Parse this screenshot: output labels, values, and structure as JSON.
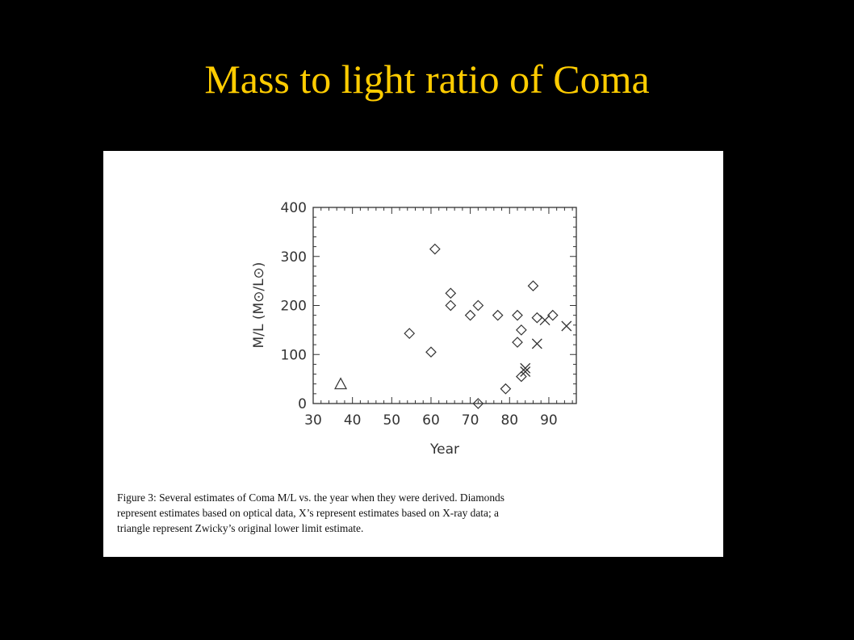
{
  "slide": {
    "title": "Mass to light ratio of Coma"
  },
  "figure": {
    "caption_lines": [
      "Figure 3:  Several estimates of Coma M/L vs.  the year when they were derived.  Diamonds",
      "represent estimates based on optical data, X’s represent estimates based on X-ray data; a",
      "triangle represent Zwicky’s original lower limit estimate."
    ]
  },
  "colors": {
    "background": "#000000",
    "title": "#ffcc00",
    "panel": "#ffffff",
    "ink": "#333333"
  },
  "chart_data": {
    "type": "scatter",
    "xlabel": "Year",
    "ylabel": "M/L (M⊙/L⊙)",
    "xlim": [
      30,
      97
    ],
    "ylim": [
      0,
      400
    ],
    "xticks": [
      30,
      40,
      50,
      60,
      70,
      80,
      90
    ],
    "yticks": [
      0,
      100,
      200,
      300,
      400
    ],
    "grid": false,
    "series": [
      {
        "marker": "diamond",
        "points": [
          {
            "x": 54.5,
            "y": 143
          },
          {
            "x": 60,
            "y": 105
          },
          {
            "x": 61,
            "y": 315
          },
          {
            "x": 65,
            "y": 200
          },
          {
            "x": 65,
            "y": 225
          },
          {
            "x": 70,
            "y": 180
          },
          {
            "x": 72,
            "y": 200
          },
          {
            "x": 72,
            "y": 0
          },
          {
            "x": 77,
            "y": 180
          },
          {
            "x": 79,
            "y": 30
          },
          {
            "x": 82,
            "y": 180
          },
          {
            "x": 82,
            "y": 125
          },
          {
            "x": 83,
            "y": 150
          },
          {
            "x": 83,
            "y": 55
          },
          {
            "x": 86,
            "y": 240
          },
          {
            "x": 87,
            "y": 175
          },
          {
            "x": 91,
            "y": 180
          }
        ]
      },
      {
        "marker": "x",
        "points": [
          {
            "x": 84,
            "y": 65
          },
          {
            "x": 84,
            "y": 72
          },
          {
            "x": 87,
            "y": 122
          },
          {
            "x": 89,
            "y": 170
          },
          {
            "x": 94.5,
            "y": 158
          }
        ]
      },
      {
        "marker": "triangle",
        "points": [
          {
            "x": 37,
            "y": 40
          }
        ]
      }
    ]
  }
}
